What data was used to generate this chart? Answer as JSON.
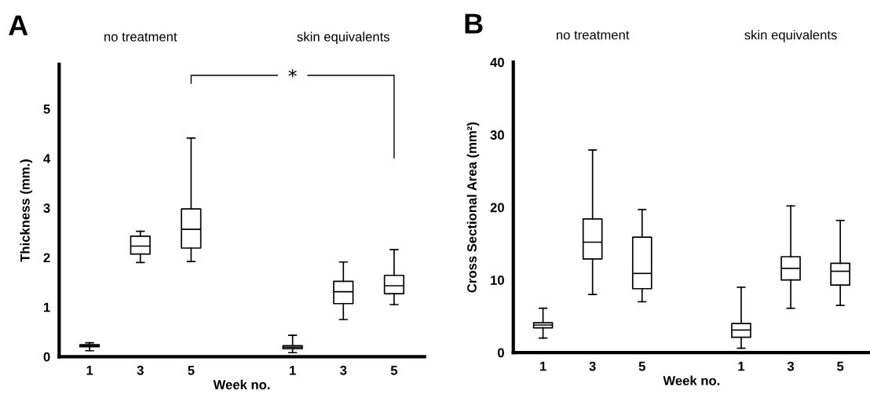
{
  "chart_data": [
    {
      "type": "box",
      "title": "A",
      "xlabel": "Week no.",
      "ylabel": "Thickness (mm.)",
      "categories": [
        "1",
        "3",
        "5",
        null,
        "1",
        "3",
        "5"
      ],
      "boxes": [
        {
          "low": 0.12,
          "q1": 0.2,
          "median": 0.22,
          "q3": 0.24,
          "high": 0.28
        },
        {
          "low": 1.9,
          "q1": 2.07,
          "median": 2.23,
          "q3": 2.43,
          "high": 2.53
        },
        {
          "low": 1.92,
          "q1": 2.19,
          "median": 2.57,
          "q3": 2.98,
          "high": 4.41
        },
        null,
        {
          "low": 0.08,
          "q1": 0.16,
          "median": 0.19,
          "q3": 0.22,
          "high": 0.43
        },
        {
          "low": 0.75,
          "q1": 1.07,
          "median": 1.31,
          "q3": 1.52,
          "high": 1.91
        },
        {
          "low": 1.05,
          "q1": 1.27,
          "median": 1.43,
          "q3": 1.64,
          "high": 2.16
        }
      ],
      "ylim": [
        0,
        5.9
      ],
      "yticks": [
        0,
        1,
        2,
        3,
        4,
        5
      ],
      "grid": false,
      "annotations": [
        "no treatment",
        "skin equivalents",
        "*"
      ]
    },
    {
      "type": "box",
      "title": "B",
      "xlabel": "Week no.",
      "ylabel": "Cross Sectional Area (mm²)",
      "categories": [
        "1",
        "3",
        "5",
        null,
        "1",
        "3",
        "5"
      ],
      "boxes": [
        {
          "low": 2.0,
          "q1": 3.4,
          "median": 3.8,
          "q3": 4.1,
          "high": 6.1
        },
        {
          "low": 8.0,
          "q1": 12.9,
          "median": 15.2,
          "q3": 18.4,
          "high": 27.9
        },
        {
          "low": 7.0,
          "q1": 8.8,
          "median": 10.9,
          "q3": 15.9,
          "high": 19.7
        },
        null,
        {
          "low": 0.6,
          "q1": 2.1,
          "median": 3.1,
          "q3": 4.0,
          "high": 9.0
        },
        {
          "low": 6.1,
          "q1": 10.0,
          "median": 11.6,
          "q3": 13.2,
          "high": 20.2
        },
        {
          "low": 6.5,
          "q1": 9.3,
          "median": 11.2,
          "q3": 12.3,
          "high": 18.2
        }
      ],
      "ylim": [
        0,
        40
      ],
      "yticks": [
        0,
        10,
        20,
        30,
        40
      ],
      "grid": false,
      "annotations": [
        "no treatment",
        "skin equivalents"
      ]
    }
  ]
}
